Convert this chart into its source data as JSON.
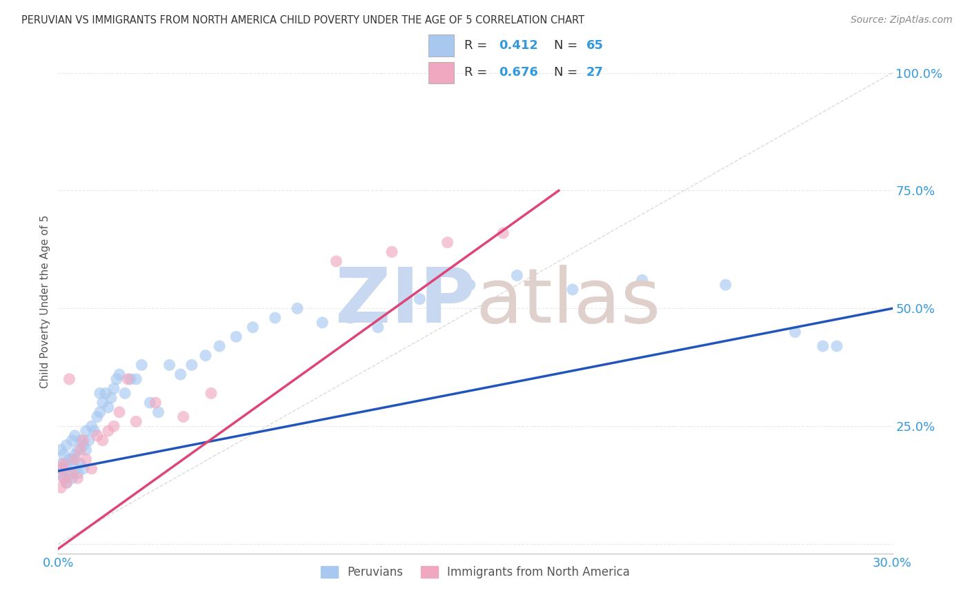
{
  "title": "PERUVIAN VS IMMIGRANTS FROM NORTH AMERICA CHILD POVERTY UNDER THE AGE OF 5 CORRELATION CHART",
  "source": "Source: ZipAtlas.com",
  "ylabel": "Child Poverty Under the Age of 5",
  "xmin": 0.0,
  "xmax": 0.3,
  "ymin": -0.02,
  "ymax": 1.05,
  "xticks": [
    0.0,
    0.05,
    0.1,
    0.15,
    0.2,
    0.25,
    0.3
  ],
  "xtick_labels": [
    "0.0%",
    "",
    "",
    "",
    "",
    "",
    "30.0%"
  ],
  "ytick_positions": [
    0.0,
    0.25,
    0.5,
    0.75,
    1.0
  ],
  "ytick_labels": [
    "",
    "25.0%",
    "50.0%",
    "75.0%",
    "100.0%"
  ],
  "blue_R": 0.412,
  "blue_N": 65,
  "pink_R": 0.676,
  "pink_N": 27,
  "blue_color": "#a8c8f0",
  "pink_color": "#f0a8c0",
  "blue_line_color": "#2255bb",
  "pink_line_color": "#dd4477",
  "diag_line_color": "#cccccc",
  "grid_color": "#e8e8e8",
  "axis_label_color": "#3399dd",
  "title_color": "#333333",
  "source_color": "#888888",
  "watermark_zip_color": "#c8d8f0",
  "watermark_atlas_color": "#e0d0cc",
  "legend_label1": "Peruvians",
  "legend_label2": "Immigrants from North America",
  "blue_trend_x0": 0.0,
  "blue_trend_y0": 0.155,
  "blue_trend_x1": 0.3,
  "blue_trend_y1": 0.5,
  "pink_trend_x0": 0.0,
  "pink_trend_y0": -0.01,
  "pink_trend_x1": 0.18,
  "pink_trend_y1": 0.75,
  "blue_x": [
    0.001,
    0.001,
    0.001,
    0.002,
    0.002,
    0.002,
    0.003,
    0.003,
    0.003,
    0.004,
    0.004,
    0.005,
    0.005,
    0.005,
    0.006,
    0.006,
    0.006,
    0.007,
    0.007,
    0.008,
    0.008,
    0.009,
    0.009,
    0.01,
    0.01,
    0.011,
    0.012,
    0.013,
    0.014,
    0.015,
    0.015,
    0.016,
    0.017,
    0.018,
    0.019,
    0.02,
    0.021,
    0.022,
    0.024,
    0.026,
    0.028,
    0.03,
    0.033,
    0.036,
    0.04,
    0.044,
    0.048,
    0.053,
    0.058,
    0.064,
    0.07,
    0.078,
    0.086,
    0.095,
    0.105,
    0.115,
    0.13,
    0.148,
    0.165,
    0.185,
    0.21,
    0.24,
    0.265,
    0.275,
    0.28
  ],
  "blue_y": [
    0.15,
    0.17,
    0.2,
    0.14,
    0.16,
    0.19,
    0.13,
    0.17,
    0.21,
    0.15,
    0.18,
    0.14,
    0.18,
    0.22,
    0.16,
    0.19,
    0.23,
    0.15,
    0.2,
    0.17,
    0.22,
    0.16,
    0.21,
    0.2,
    0.24,
    0.22,
    0.25,
    0.24,
    0.27,
    0.28,
    0.32,
    0.3,
    0.32,
    0.29,
    0.31,
    0.33,
    0.35,
    0.36,
    0.32,
    0.35,
    0.35,
    0.38,
    0.3,
    0.28,
    0.38,
    0.36,
    0.38,
    0.4,
    0.42,
    0.44,
    0.46,
    0.48,
    0.5,
    0.47,
    0.48,
    0.46,
    0.52,
    0.55,
    0.57,
    0.54,
    0.56,
    0.55,
    0.45,
    0.42,
    0.42
  ],
  "pink_x": [
    0.001,
    0.001,
    0.002,
    0.002,
    0.003,
    0.004,
    0.005,
    0.006,
    0.007,
    0.008,
    0.009,
    0.01,
    0.012,
    0.014,
    0.016,
    0.018,
    0.02,
    0.022,
    0.025,
    0.028,
    0.035,
    0.045,
    0.055,
    0.1,
    0.12,
    0.14,
    0.16
  ],
  "pink_y": [
    0.12,
    0.16,
    0.14,
    0.17,
    0.13,
    0.35,
    0.15,
    0.18,
    0.14,
    0.2,
    0.22,
    0.18,
    0.16,
    0.23,
    0.22,
    0.24,
    0.25,
    0.28,
    0.35,
    0.26,
    0.3,
    0.27,
    0.32,
    0.6,
    0.62,
    0.64,
    0.66
  ]
}
